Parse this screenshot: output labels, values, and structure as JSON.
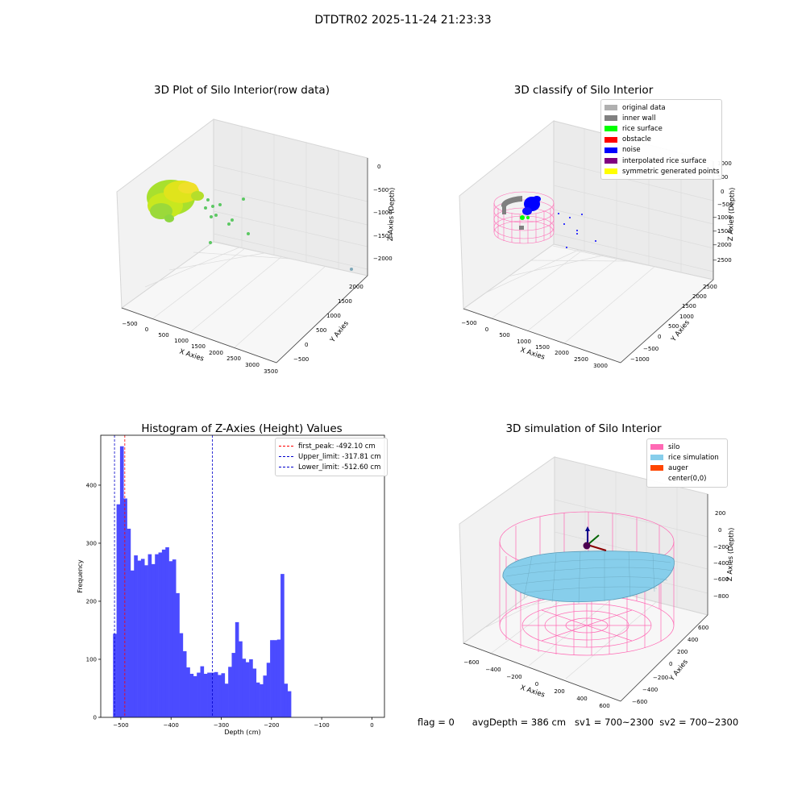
{
  "suptitle": "DTDTR02 2025-11-24 21:23:33",
  "status": {
    "flag": "flag = 0",
    "avg_depth": "avgDepth = 386 cm",
    "sv1": "sv1 = 700~2300",
    "sv2": "sv2 = 700~2300"
  },
  "colors": {
    "hist_bar": "#4b4bff",
    "first_peak": "#ff0000",
    "limits": "#0000cc",
    "silo": "#ff69b4",
    "rice_simulation": "#87ceeb",
    "auger": "#ff4500"
  },
  "chart_data": [
    {
      "type": "scatter",
      "subtype": "3d",
      "title": "3D Plot of Silo Interior(row data)",
      "xlabel": "X Axies",
      "ylabel": "Y Axies",
      "zlabel": "Z Axies (Depth)",
      "x_ticks": [
        "−500",
        "0",
        "500",
        "1000",
        "1500",
        "2000",
        "2500",
        "3000",
        "3500"
      ],
      "y_ticks": [
        "−500",
        "0",
        "500",
        "1000",
        "1500",
        "2000"
      ],
      "z_ticks": [
        "0",
        "−500",
        "−1000",
        "−1500",
        "−2000"
      ]
    },
    {
      "type": "scatter",
      "subtype": "3d",
      "title": "3D classify of Silo Interior",
      "xlabel": "X Axies",
      "ylabel": "Y Axies",
      "zlabel": "Z Axies (Depth)",
      "x_ticks": [
        "−500",
        "0",
        "500",
        "1000",
        "1500",
        "2000",
        "2500",
        "3000"
      ],
      "y_ticks": [
        "−1000",
        "−500",
        "0",
        "500",
        "1000",
        "1500",
        "2000",
        "2500"
      ],
      "z_ticks": [
        "1000",
        "500",
        "0",
        "−500",
        "−1000",
        "−1500",
        "−2000",
        "−2500"
      ],
      "legend": [
        {
          "label": "original data",
          "color": "#b0b0b0"
        },
        {
          "label": "inner wall",
          "color": "#808080"
        },
        {
          "label": "rice surface",
          "color": "#00ff00"
        },
        {
          "label": "obstacle",
          "color": "#ff0000"
        },
        {
          "label": "noise",
          "color": "#0000ff"
        },
        {
          "label": "interpolated rice surface",
          "color": "#800080"
        },
        {
          "label": "symmetric generated points",
          "color": "#ffff00"
        }
      ]
    },
    {
      "type": "bar",
      "subtype": "histogram",
      "title": "Histogram of Z-Axies (Height) Values",
      "xlabel": "Depth (cm)",
      "ylabel": "Frequency",
      "xlim": [
        -540,
        25
      ],
      "ylim": [
        0,
        486
      ],
      "x_ticks": [
        -500,
        -400,
        -300,
        -200,
        -100,
        0
      ],
      "x_tick_labels": [
        "−500",
        "−400",
        "−300",
        "−200",
        "−100",
        "0"
      ],
      "y_ticks": [
        0,
        100,
        200,
        300,
        400
      ],
      "bin_start": -515.5,
      "bin_width": 6.95,
      "values": [
        144,
        367,
        467,
        377,
        325,
        253,
        279,
        270,
        273,
        262,
        281,
        264,
        281,
        284,
        289,
        293,
        269,
        272,
        214,
        145,
        114,
        86,
        75,
        71,
        77,
        88,
        75,
        77,
        77,
        78,
        73,
        76,
        58,
        87,
        111,
        164,
        131,
        101,
        95,
        100,
        84,
        60,
        57,
        72,
        94,
        133,
        133,
        134,
        247,
        58,
        45
      ],
      "lines": [
        {
          "label": "first_peak: -492.10 cm",
          "x": -492.1,
          "color": "#ff0000"
        },
        {
          "label": "Upper_limit: -317.81 cm",
          "x": -317.81,
          "color": "#0000cc"
        },
        {
          "label": "Lower_limit: -512.60 cm",
          "x": -512.6,
          "color": "#0000cc"
        }
      ]
    },
    {
      "type": "scatter",
      "subtype": "3d-surface",
      "title": "3D simulation of Silo Interior",
      "xlabel": "X Axies",
      "ylabel": "Y Axies",
      "zlabel": "Z Axies (Depth)",
      "x_ticks": [
        "−600",
        "−400",
        "−200",
        "0",
        "200",
        "400",
        "600"
      ],
      "y_ticks": [
        "−600",
        "−400",
        "−200",
        "0",
        "200",
        "400",
        "600"
      ],
      "z_ticks": [
        "200",
        "0",
        "−200",
        "−400",
        "−600",
        "−800"
      ],
      "legend": [
        {
          "label": "silo",
          "color": "#ff69b4"
        },
        {
          "label": "rice simulation",
          "color": "#87ceeb"
        },
        {
          "label": "auger",
          "color": "#ff4500"
        },
        {
          "label": "center(0,0)",
          "color": ""
        }
      ]
    }
  ]
}
